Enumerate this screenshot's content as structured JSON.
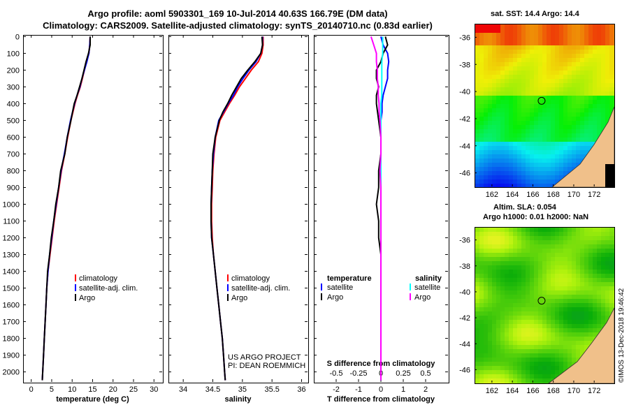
{
  "header": {
    "line1": "Argo profile: aoml 5903301_169 10-Jul-2014 40.63S 166.79E (DM data)",
    "line2": "Climatology: CARS2009. Satellite-adjusted climatology: synTS_20140710.nc (0.83d earlier)"
  },
  "depth_ticks": [
    "0",
    "100",
    "200",
    "300",
    "400",
    "500",
    "600",
    "700",
    "800",
    "900",
    "1000",
    "1100",
    "1200",
    "1300",
    "1400",
    "1500",
    "1600",
    "1700",
    "1800",
    "1900",
    "2000"
  ],
  "colors": {
    "climatology": "#ff0000",
    "satellite": "#0000ff",
    "argo": "#000000",
    "satellite_S": "#00ffff",
    "argo_S": "#ff00ff"
  },
  "legend": {
    "climatology": "climatology",
    "satellite": "satellite-adj. clim.",
    "argo": "Argo"
  },
  "legend_diff": {
    "temperature": "temperature",
    "salinity": "salinity",
    "satellite": "satellite",
    "argo": "Argo"
  },
  "credit": {
    "line1": "US ARGO PROJECT",
    "line2": "PI: DEAN ROEMMICH"
  },
  "chart_data": [
    {
      "type": "line",
      "xlabel": "temperature (deg C)",
      "xlim": [
        -2,
        32
      ],
      "ylim": [
        2060,
        -10
      ],
      "xticks": [
        "0",
        "5",
        "10",
        "15",
        "20",
        "25",
        "30"
      ],
      "depth": [
        0,
        50,
        100,
        150,
        200,
        250,
        300,
        350,
        400,
        450,
        500,
        600,
        700,
        800,
        900,
        1000,
        1100,
        1200,
        1300,
        1400,
        1500,
        1600,
        1700,
        1800,
        1900,
        2000,
        2050
      ],
      "series": [
        {
          "name": "climatology",
          "values": [
            14.4,
            14.3,
            14.1,
            13.5,
            13.0,
            12.5,
            12.0,
            11.3,
            10.7,
            10.2,
            9.7,
            8.9,
            8.2,
            7.4,
            6.8,
            6.2,
            5.6,
            5.1,
            4.6,
            4.1,
            3.8,
            3.6,
            3.4,
            3.2,
            3.0,
            2.8,
            2.7
          ]
        },
        {
          "name": "satellite-adj. clim.",
          "values": [
            14.4,
            14.3,
            14.1,
            13.6,
            13.0,
            12.4,
            11.9,
            11.2,
            10.6,
            10.1,
            9.6,
            8.8,
            8.1,
            7.3,
            6.7,
            6.1,
            5.5,
            5.0,
            4.5,
            4.1,
            3.8,
            3.6,
            3.4,
            3.2,
            3.0,
            2.8,
            2.7
          ]
        },
        {
          "name": "Argo",
          "values": [
            14.4,
            14.4,
            14.0,
            13.4,
            12.9,
            12.4,
            11.8,
            11.2,
            10.5,
            10.1,
            9.7,
            8.8,
            8.2,
            7.2,
            6.7,
            6.0,
            5.5,
            4.9,
            4.5,
            4.0,
            3.8,
            3.6,
            3.4,
            3.2,
            3.0,
            2.8,
            2.7
          ]
        }
      ]
    },
    {
      "type": "line",
      "xlabel": "salinity",
      "xlim": [
        33.75,
        36.1
      ],
      "ylim": [
        2060,
        -10
      ],
      "xticks": [
        "34",
        "34.5",
        "35",
        "35.5",
        "36"
      ],
      "depth": [
        0,
        50,
        100,
        150,
        200,
        250,
        300,
        350,
        400,
        450,
        500,
        600,
        700,
        800,
        900,
        1000,
        1100,
        1200,
        1300,
        1400,
        1500,
        1600,
        1700,
        1800,
        1900,
        2000,
        2050
      ],
      "series": [
        {
          "name": "climatology",
          "values": [
            35.35,
            35.35,
            35.33,
            35.27,
            35.15,
            35.05,
            34.95,
            34.87,
            34.78,
            34.7,
            34.62,
            34.55,
            34.52,
            34.5,
            34.49,
            34.48,
            34.48,
            34.49,
            34.51,
            34.54,
            34.57,
            34.6,
            34.63,
            34.66,
            34.68,
            34.7,
            34.71
          ]
        },
        {
          "name": "satellite-adj. clim.",
          "values": [
            35.34,
            35.34,
            35.31,
            35.23,
            35.11,
            35.01,
            34.92,
            34.85,
            34.76,
            34.68,
            34.6,
            34.54,
            34.51,
            34.49,
            34.48,
            34.47,
            34.47,
            34.48,
            34.51,
            34.54,
            34.57,
            34.6,
            34.63,
            34.66,
            34.68,
            34.7,
            34.71
          ]
        },
        {
          "name": "Argo",
          "values": [
            35.33,
            35.34,
            35.31,
            35.21,
            35.09,
            34.98,
            34.9,
            34.82,
            34.75,
            34.67,
            34.61,
            34.54,
            34.5,
            34.49,
            34.48,
            34.47,
            34.47,
            34.48,
            34.51,
            34.54,
            34.57,
            34.6,
            34.63,
            34.66,
            34.68,
            34.7,
            34.71
          ]
        }
      ]
    },
    {
      "type": "line",
      "xlabel": "T difference from climatology",
      "secondary_xlabel": "S difference from climatology",
      "xlim": [
        -3,
        3
      ],
      "ylim": [
        2060,
        -10
      ],
      "xticks": [
        "-2",
        "-1",
        "0",
        "1",
        "2"
      ],
      "secondary_xticks": [
        {
          "label": "-0.5",
          "value": -0.5
        },
        {
          "label": "-0.25",
          "value": -0.25
        },
        {
          "label": "0",
          "value": 0
        },
        {
          "label": "0.25",
          "value": 0.25
        },
        {
          "label": "0.5",
          "value": 0.5
        }
      ],
      "secondary_scale": 0.25,
      "depth": [
        0,
        50,
        100,
        150,
        200,
        250,
        300,
        350,
        400,
        450,
        500,
        600,
        700,
        800,
        900,
        1000,
        1100,
        1200,
        1300,
        1400,
        1500,
        1600,
        1700,
        1800,
        1900,
        2000,
        2050
      ],
      "series": [
        {
          "name": "temperature satellite",
          "units": "T",
          "values": [
            0.0,
            0.1,
            0.3,
            0.35,
            0.3,
            0.3,
            0.2,
            0.1,
            0.05,
            0.05,
            0.0,
            0.0,
            0.0,
            0.0,
            0.0,
            0.0,
            0.0,
            0.0,
            0.0,
            0.0,
            0.0,
            0.0,
            0.0,
            0.0,
            0.0,
            0.0,
            0.0
          ]
        },
        {
          "name": "temperature Argo",
          "units": "T",
          "values": [
            0.2,
            0.3,
            0.1,
            0.0,
            -0.2,
            -0.2,
            -0.1,
            -0.2,
            -0.2,
            -0.15,
            -0.1,
            0.0,
            0.0,
            -0.1,
            -0.1,
            -0.2,
            -0.1,
            -0.1,
            0.0,
            0.0,
            0.0,
            0.0,
            0.0,
            0.0,
            0.0,
            0.0,
            0.0
          ]
        },
        {
          "name": "salinity satellite",
          "units": "S",
          "values": [
            0.02,
            0.02,
            0.02,
            0.01,
            0.01,
            0.01,
            0.01,
            0.01,
            0.0,
            0.0,
            0.0,
            0.0,
            0.0,
            0.0,
            0.0,
            0.0,
            0.0,
            0.0,
            0.0,
            0.0,
            0.0,
            0.0,
            0.0,
            0.0,
            0.0,
            0.0,
            0.0
          ]
        },
        {
          "name": "salinity Argo",
          "units": "S",
          "values": [
            -0.11,
            -0.08,
            -0.05,
            -0.05,
            -0.04,
            -0.04,
            -0.03,
            -0.03,
            -0.02,
            -0.02,
            -0.01,
            0.0,
            0.0,
            -0.01,
            0.0,
            0.0,
            0.0,
            0.0,
            0.0,
            0.0,
            0.0,
            0.0,
            0.0,
            0.0,
            0.0,
            0.0,
            0.0
          ]
        }
      ]
    }
  ],
  "maps": {
    "sst": {
      "title": "sat. SST: 14.4 Argo: 14.4",
      "lat_ticks": [
        "-36",
        "-38",
        "-40",
        "-42",
        "-44",
        "-46"
      ],
      "lon_ticks": [
        "162",
        "164",
        "166",
        "168",
        "170",
        "172"
      ],
      "lat_range": [
        -35.0,
        -47.0
      ],
      "lon_range": [
        160.3,
        173.9
      ],
      "argo_position": {
        "lat": -40.63,
        "lon": 166.79
      }
    },
    "sla": {
      "title1": "Altim. SLA: 0.054",
      "title2": "Argo h1000: 0.01 h2000: NaN",
      "lat_ticks": [
        "-36",
        "-38",
        "-40",
        "-42",
        "-44",
        "-46"
      ],
      "lon_ticks": [
        "162",
        "164",
        "166",
        "168",
        "170",
        "172"
      ],
      "lat_range": [
        -35.0,
        -47.0
      ],
      "lon_range": [
        160.3,
        173.9
      ],
      "argo_position": {
        "lat": -40.63,
        "lon": 166.79
      }
    }
  },
  "copyright": "©IMOS 13-Dec-2018 19:46:42"
}
